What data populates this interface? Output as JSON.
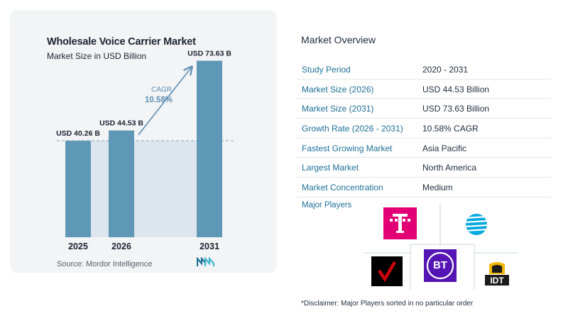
{
  "chart_data": {
    "type": "bar",
    "title": "Wholesale Voice Carrier Market",
    "subtitle": "Market Size in USD Billion",
    "categories": [
      "2025",
      "2026",
      "2031"
    ],
    "values": [
      40.26,
      44.53,
      73.63
    ],
    "data_labels": [
      "USD 40.26 B",
      "USD 44.53 B",
      "USD 73.63 B"
    ],
    "cagr_label": "CAGR",
    "cagr_value": "10.58%",
    "bar_color": "#5f98b6",
    "ylim": [
      0,
      80
    ]
  },
  "source": "Source:  Mordor Intelligence",
  "overview": {
    "title": "Market Overview",
    "rows": [
      {
        "label": "Study Period",
        "value": "2020 - 2031"
      },
      {
        "label": "Market Size (2026)",
        "value": "USD 44.53 Billion"
      },
      {
        "label": "Market Size (2031)",
        "value": "USD 73.63 Billion"
      },
      {
        "label": "Growth Rate (2026 - 2031)",
        "value": "10.58% CAGR"
      },
      {
        "label": "Fastest Growing Market",
        "value": "Asia Pacific"
      },
      {
        "label": "Largest Market",
        "value": "North America"
      },
      {
        "label": "Market Concentration",
        "value": "Medium"
      }
    ]
  },
  "players": {
    "title": "Major Players",
    "logos": [
      {
        "name": "Deutsche Telekom",
        "icon": "telekom-t-logo",
        "text": "T"
      },
      {
        "name": "AT&T",
        "icon": "att-globe-logo"
      },
      {
        "name": "Verizon",
        "icon": "verizon-check-logo"
      },
      {
        "name": "BT",
        "icon": "bt-logo",
        "text": "BT"
      },
      {
        "name": "IDT",
        "icon": "idt-logo",
        "text": "IDT"
      }
    ]
  },
  "disclaimer": "*Disclaimer: Major Players sorted in no particular order",
  "colors": {
    "accent_blue": "#1e6f98",
    "telekom_magenta": "#e20074",
    "bt_purple": "#5514b4",
    "verizon_red": "#cd040b",
    "att_blue": "#00a8e0"
  }
}
